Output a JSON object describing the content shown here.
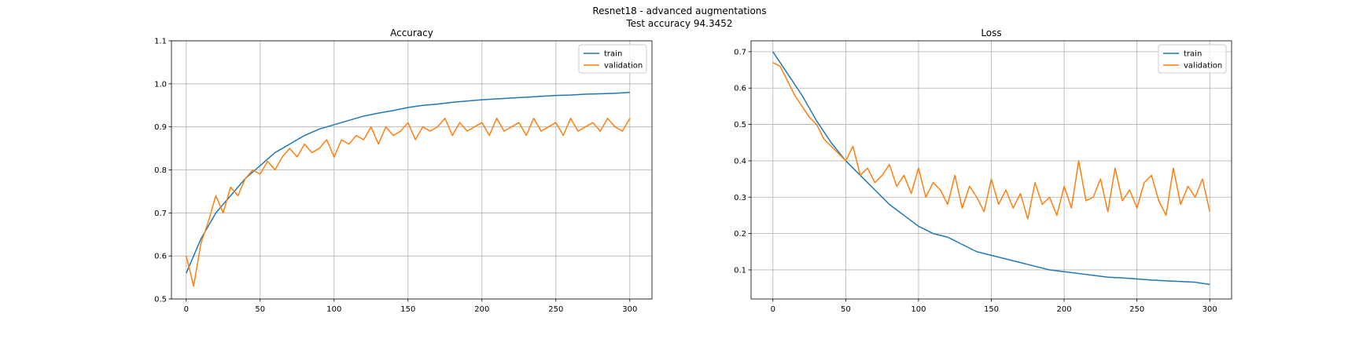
{
  "figure": {
    "title_line1": "Resnet18 - advanced augmentations",
    "title_line2": "Test accuracy 94.3452"
  },
  "colors": {
    "train": "#1f77b4",
    "validation": "#ff7f0e"
  },
  "chart_data": [
    {
      "type": "line",
      "title": "Accuracy",
      "xlabel": "",
      "ylabel": "",
      "xlim": [
        -10,
        315
      ],
      "ylim": [
        0.5,
        1.1
      ],
      "xticks": [
        0,
        50,
        100,
        150,
        200,
        250,
        300
      ],
      "yticks": [
        0.5,
        0.6,
        0.7,
        0.8,
        0.9,
        1.0,
        1.1
      ],
      "ytick_labels": [
        "0.5",
        "0.6",
        "0.7",
        "0.8",
        "0.9",
        "1.0",
        "1.1"
      ],
      "grid": true,
      "legend_position": "upper right",
      "series": [
        {
          "name": "train",
          "x": [
            0,
            10,
            20,
            30,
            40,
            50,
            60,
            70,
            80,
            90,
            100,
            110,
            120,
            130,
            140,
            150,
            160,
            170,
            180,
            190,
            200,
            210,
            220,
            230,
            240,
            250,
            260,
            270,
            280,
            290,
            300
          ],
          "values": [
            0.56,
            0.64,
            0.7,
            0.74,
            0.78,
            0.81,
            0.84,
            0.86,
            0.88,
            0.895,
            0.905,
            0.915,
            0.925,
            0.932,
            0.938,
            0.945,
            0.95,
            0.953,
            0.957,
            0.96,
            0.963,
            0.965,
            0.967,
            0.969,
            0.971,
            0.973,
            0.974,
            0.976,
            0.977,
            0.978,
            0.98
          ]
        },
        {
          "name": "validation",
          "x": [
            0,
            5,
            10,
            15,
            20,
            25,
            30,
            35,
            40,
            45,
            50,
            55,
            60,
            65,
            70,
            75,
            80,
            85,
            90,
            95,
            100,
            105,
            110,
            115,
            120,
            125,
            130,
            135,
            140,
            145,
            150,
            155,
            160,
            165,
            170,
            175,
            180,
            185,
            190,
            195,
            200,
            205,
            210,
            215,
            220,
            225,
            230,
            235,
            240,
            245,
            250,
            255,
            260,
            265,
            270,
            275,
            280,
            285,
            290,
            295,
            300
          ],
          "values": [
            0.6,
            0.53,
            0.63,
            0.68,
            0.74,
            0.7,
            0.76,
            0.74,
            0.78,
            0.8,
            0.79,
            0.82,
            0.8,
            0.83,
            0.85,
            0.83,
            0.86,
            0.84,
            0.85,
            0.87,
            0.83,
            0.87,
            0.86,
            0.88,
            0.87,
            0.9,
            0.86,
            0.9,
            0.88,
            0.89,
            0.91,
            0.87,
            0.9,
            0.89,
            0.9,
            0.92,
            0.88,
            0.91,
            0.89,
            0.9,
            0.91,
            0.88,
            0.92,
            0.89,
            0.9,
            0.91,
            0.88,
            0.92,
            0.89,
            0.9,
            0.91,
            0.88,
            0.92,
            0.89,
            0.9,
            0.91,
            0.89,
            0.92,
            0.9,
            0.89,
            0.92
          ]
        }
      ]
    },
    {
      "type": "line",
      "title": "Loss",
      "xlabel": "",
      "ylabel": "",
      "xlim": [
        -15,
        315
      ],
      "ylim": [
        0.02,
        0.73
      ],
      "xticks": [
        0,
        50,
        100,
        150,
        200,
        250,
        300
      ],
      "yticks": [
        0.1,
        0.2,
        0.3,
        0.4,
        0.5,
        0.6,
        0.7
      ],
      "ytick_labels": [
        "0.1",
        "0.2",
        "0.3",
        "0.4",
        "0.5",
        "0.6",
        "0.7"
      ],
      "grid": true,
      "legend_position": "upper right",
      "series": [
        {
          "name": "train",
          "x": [
            0,
            10,
            20,
            30,
            40,
            50,
            60,
            70,
            80,
            90,
            100,
            110,
            120,
            130,
            140,
            150,
            160,
            170,
            180,
            190,
            200,
            210,
            220,
            230,
            240,
            250,
            260,
            270,
            280,
            290,
            300
          ],
          "values": [
            0.7,
            0.64,
            0.58,
            0.51,
            0.45,
            0.4,
            0.36,
            0.32,
            0.28,
            0.25,
            0.22,
            0.2,
            0.19,
            0.17,
            0.15,
            0.14,
            0.13,
            0.12,
            0.11,
            0.1,
            0.095,
            0.09,
            0.085,
            0.08,
            0.078,
            0.075,
            0.072,
            0.07,
            0.068,
            0.066,
            0.06
          ]
        },
        {
          "name": "validation",
          "x": [
            0,
            5,
            10,
            15,
            20,
            25,
            30,
            35,
            40,
            45,
            50,
            55,
            60,
            65,
            70,
            75,
            80,
            85,
            90,
            95,
            100,
            105,
            110,
            115,
            120,
            125,
            130,
            135,
            140,
            145,
            150,
            155,
            160,
            165,
            170,
            175,
            180,
            185,
            190,
            195,
            200,
            205,
            210,
            215,
            220,
            225,
            230,
            235,
            240,
            245,
            250,
            255,
            260,
            265,
            270,
            275,
            280,
            285,
            290,
            295,
            300
          ],
          "values": [
            0.67,
            0.66,
            0.62,
            0.58,
            0.55,
            0.52,
            0.5,
            0.46,
            0.44,
            0.42,
            0.4,
            0.44,
            0.36,
            0.38,
            0.34,
            0.36,
            0.39,
            0.33,
            0.36,
            0.31,
            0.38,
            0.3,
            0.34,
            0.32,
            0.28,
            0.36,
            0.27,
            0.33,
            0.3,
            0.26,
            0.35,
            0.28,
            0.32,
            0.27,
            0.31,
            0.24,
            0.34,
            0.28,
            0.3,
            0.25,
            0.33,
            0.27,
            0.4,
            0.29,
            0.3,
            0.35,
            0.26,
            0.38,
            0.29,
            0.32,
            0.27,
            0.34,
            0.36,
            0.29,
            0.25,
            0.38,
            0.28,
            0.33,
            0.3,
            0.35,
            0.26
          ]
        }
      ]
    }
  ]
}
